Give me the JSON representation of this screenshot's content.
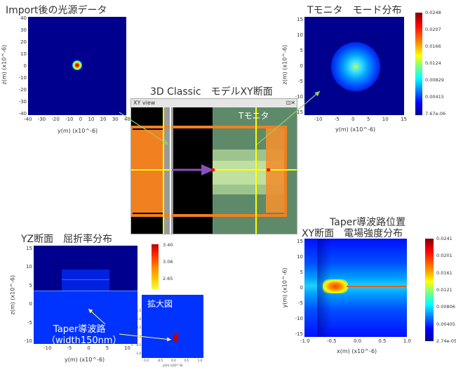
{
  "panel_import": {
    "title": "Import後の光源データ",
    "ylabel": "z(m) (x10^-6)",
    "xlabel": "y(m) (x10^-6)",
    "yticks": [
      "40",
      "30",
      "20",
      "10",
      "0",
      "-10",
      "-20",
      "-30",
      "-40"
    ],
    "xticks": [
      "-40",
      "-30",
      "-20",
      "-10",
      "0",
      "10",
      "20",
      "30",
      "40"
    ]
  },
  "panel_tmonitor": {
    "title": "Tモニタ　モード分布",
    "ylabel": "z(m) (x10^-6)",
    "xlabel": "y(m) (x10^-6)",
    "yticks": [
      "15",
      "10",
      "5",
      "0",
      "-5",
      "-10",
      "-15"
    ],
    "xticks": [
      "-10",
      "-5",
      "0",
      "5",
      "10",
      "15"
    ],
    "colorbar": [
      "0.0248",
      "0.0207",
      "0.0166",
      "0.0124",
      "0.00829",
      "0.00415",
      "7.67e-06"
    ]
  },
  "center_view": {
    "title": "3D Classic　モデルXY断面",
    "window_title": "XY view",
    "window_controls": "⊡✕",
    "annotation": "Tモニタ"
  },
  "panel_yz": {
    "title": "YZ断面　屈折率分布",
    "ylabel": "z(m) (x10^-6)",
    "xlabel": "y(m) (x10^-6)",
    "yticks": [
      "15",
      "10",
      "5",
      "0",
      "-5",
      "-10"
    ],
    "xticks": [
      "-10",
      "-5",
      "0",
      "5",
      "10"
    ],
    "colorbar": [
      "3.40",
      "3.06",
      "2.65"
    ],
    "zoom_label": "拡大図",
    "zoom_xlabel": "y(m) (x10^-6)",
    "zoom_ylabel": "z(m) (x10^-6)",
    "zoom_yticks": [
      "1.5",
      "1.0",
      "0.5",
      "0.0",
      "-0.5",
      "-1.0"
    ],
    "zoom_xticks": [
      "-1.0",
      "-0.5",
      "0.0",
      "0.5",
      "1.0"
    ],
    "annotation_line1": "Taper導波路",
    "annotation_line2": "（width150nm）"
  },
  "panel_taper": {
    "title_line1": "Taper導波路位置",
    "title_line2": "XY断面　電場強度分布",
    "ylabel": "y(m) (x10^-6)",
    "xlabel": "x(m) (x10^-6)",
    "yticks": [
      "15",
      "10",
      "5",
      "0",
      "-5",
      "-10",
      "-15"
    ],
    "xticks": [
      "-1.0",
      "-0.5",
      "0.0",
      "0.5",
      "1.0"
    ],
    "colorbar": [
      "0.0241",
      "0.0201",
      "0.0161",
      "0.0121",
      "0.00806",
      "0.00405",
      "2.74e-05"
    ]
  },
  "colors": {
    "jet_dark_blue": "#00008f",
    "jet_blue": "#0000ff",
    "orange": "#f08020",
    "green_grey": "#5f8a6a",
    "yellow": "#ffff00",
    "purple_arrow": "#8a4fbf",
    "pale_green": "#bfe0a0"
  }
}
